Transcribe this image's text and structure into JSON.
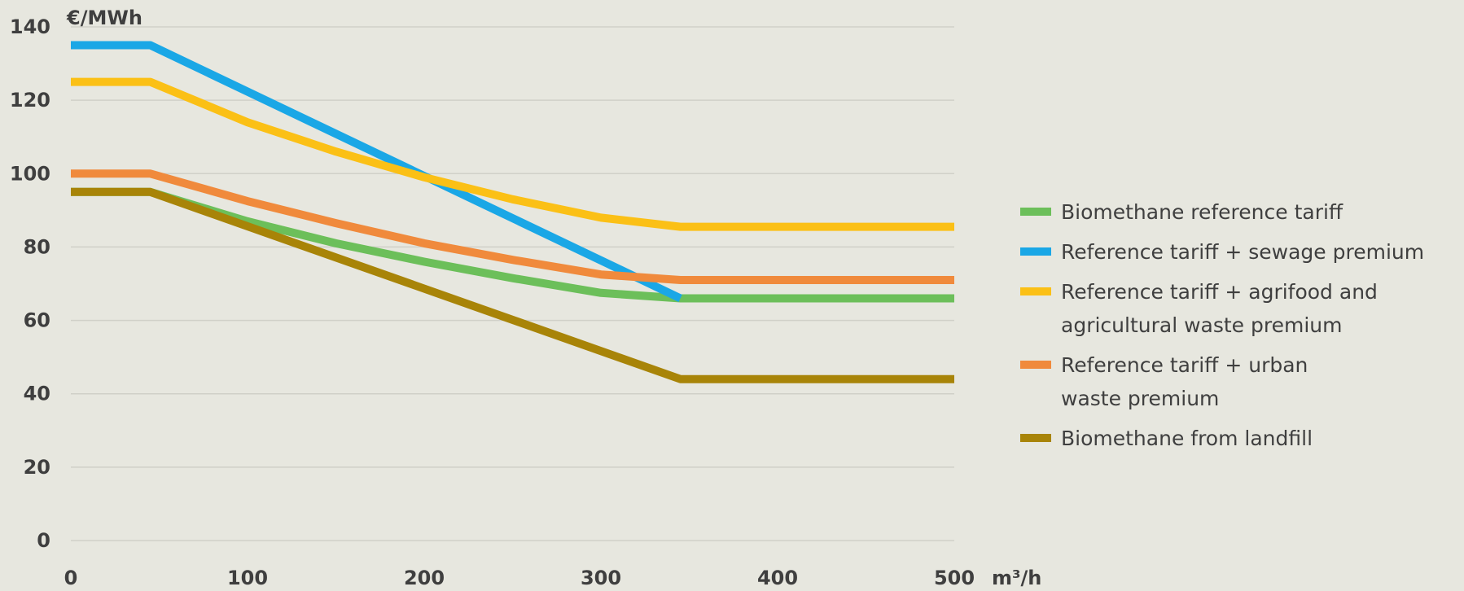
{
  "chart_data": {
    "type": "line",
    "ylabel": "€/MWh",
    "xlabel": "m³/h",
    "xlim": [
      0,
      500
    ],
    "ylim": [
      0,
      140
    ],
    "x_ticks": [
      "0",
      "100",
      "200",
      "300",
      "400",
      "500"
    ],
    "y_ticks": [
      "0",
      "20",
      "40",
      "60",
      "80",
      "100",
      "120",
      "140"
    ],
    "grid": "horizontal",
    "legend_position": "right",
    "series": [
      {
        "name": "Biomethane reference tariff",
        "color": "#6cbf5a",
        "points": [
          [
            0,
            95
          ],
          [
            45,
            95
          ],
          [
            100,
            87
          ],
          [
            150,
            81
          ],
          [
            200,
            76
          ],
          [
            250,
            71.5
          ],
          [
            300,
            67.5
          ],
          [
            345,
            66
          ],
          [
            500,
            66
          ]
        ]
      },
      {
        "name": "Reference tariff + sewage premium",
        "color": "#1aa7e6",
        "points": [
          [
            0,
            135
          ],
          [
            45,
            135
          ],
          [
            345,
            66
          ]
        ]
      },
      {
        "name": "Reference tariff + agrifood and agricultural waste premium",
        "color": "#fbc016",
        "points": [
          [
            0,
            125
          ],
          [
            45,
            125
          ],
          [
            100,
            114
          ],
          [
            150,
            106
          ],
          [
            200,
            99
          ],
          [
            250,
            93
          ],
          [
            300,
            88
          ],
          [
            345,
            85.5
          ],
          [
            500,
            85.5
          ]
        ]
      },
      {
        "name": "Reference tariff + urban waste premium",
        "color": "#f08a3c",
        "points": [
          [
            0,
            100
          ],
          [
            45,
            100
          ],
          [
            100,
            92.5
          ],
          [
            150,
            86.5
          ],
          [
            200,
            81
          ],
          [
            250,
            76.5
          ],
          [
            300,
            72.5
          ],
          [
            345,
            71
          ],
          [
            500,
            71
          ]
        ]
      },
      {
        "name": "Biomethane from landfill",
        "color": "#a88408",
        "points": [
          [
            0,
            95
          ],
          [
            45,
            95
          ],
          [
            345,
            44
          ],
          [
            500,
            44
          ]
        ]
      }
    ],
    "legend": [
      {
        "lines": [
          "Biomethane reference tariff"
        ]
      },
      {
        "lines": [
          "Reference tariff + sewage premium"
        ]
      },
      {
        "lines": [
          "Reference tariff + agrifood and",
          "agricultural waste premium"
        ]
      },
      {
        "lines": [
          "Reference tariff + urban",
          "waste premium"
        ]
      },
      {
        "lines": [
          "Biomethane from landfill"
        ]
      }
    ]
  }
}
